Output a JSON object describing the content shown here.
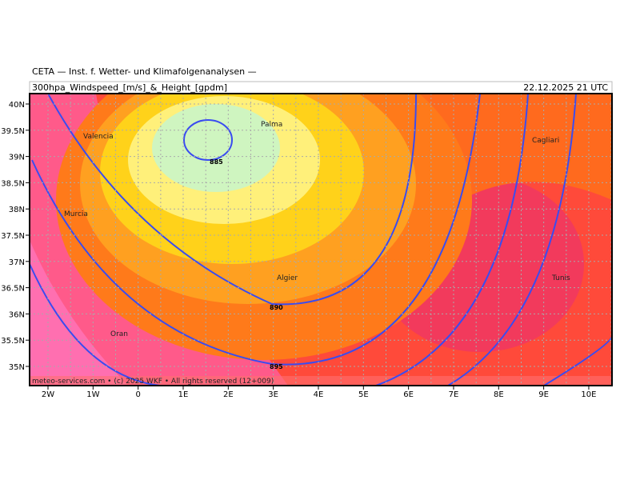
{
  "header": {
    "title": "CETA — Inst. f. Wetter- und Klimafolgenanalysen —",
    "product": "300hpa_Windspeed_[m/s]_&_Height_[gpdm]",
    "valid": "22.12.2025 21 UTC"
  },
  "map": {
    "lat_labels": [
      "40N",
      "39.5N",
      "39N",
      "38.5N",
      "38N",
      "37.5N",
      "37N",
      "36.5N",
      "36N",
      "35.5N",
      "35N"
    ],
    "lon_labels": [
      "2W",
      "1W",
      "0",
      "1E",
      "2E",
      "3E",
      "4E",
      "5E",
      "6E",
      "7E",
      "8E",
      "9E",
      "10E"
    ],
    "places": [
      "Valencia",
      "Murcia",
      "Palma",
      "Cagliari",
      "Algier",
      "Tunis",
      "Oran"
    ],
    "contour_labels": [
      "885",
      "890",
      "895"
    ],
    "footer": "meteo-services.com • (c) 2025 WKF • All rights reserved (12+009)"
  }
}
